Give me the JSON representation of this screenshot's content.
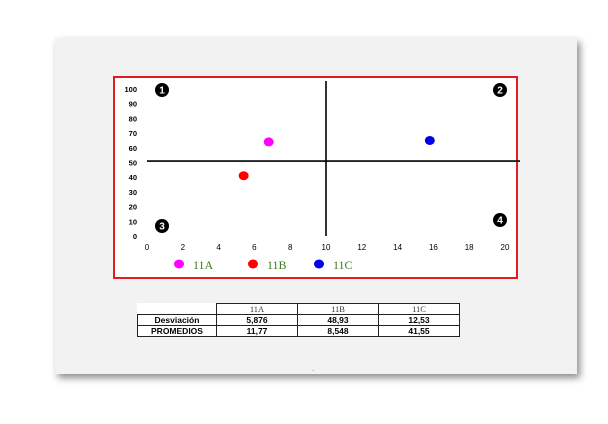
{
  "chart_data": {
    "type": "scatter",
    "xlim": [
      0,
      20
    ],
    "ylim": [
      0,
      100
    ],
    "x_ticks": [
      0,
      2,
      4,
      6,
      8,
      10,
      12,
      14,
      16,
      18,
      20
    ],
    "y_ticks": [
      0,
      10,
      20,
      30,
      40,
      50,
      60,
      70,
      80,
      90,
      100
    ],
    "crosshair": {
      "x": 10,
      "y": 51
    },
    "quadrant_labels": [
      "1",
      "2",
      "3",
      "4"
    ],
    "series": [
      {
        "name": "11A",
        "color": "#ff00ff",
        "x": [
          6.8
        ],
        "y": [
          64
        ]
      },
      {
        "name": "11B",
        "color": "#ff0000",
        "x": [
          5.4
        ],
        "y": [
          41
        ]
      },
      {
        "name": "11C",
        "color": "#0000ee",
        "x": [
          15.8
        ],
        "y": [
          65
        ]
      }
    ],
    "legend_color": "#3a7d1e"
  },
  "table": {
    "headers": [
      "11A",
      "11B",
      "11C"
    ],
    "rows": [
      {
        "label": "Desviación",
        "values": [
          "5,876",
          "48,93",
          "12,53"
        ]
      },
      {
        "label": "PROMEDIOS",
        "values": [
          "11,77",
          "8,548",
          "41,55"
        ]
      }
    ]
  },
  "footer_mark": "."
}
